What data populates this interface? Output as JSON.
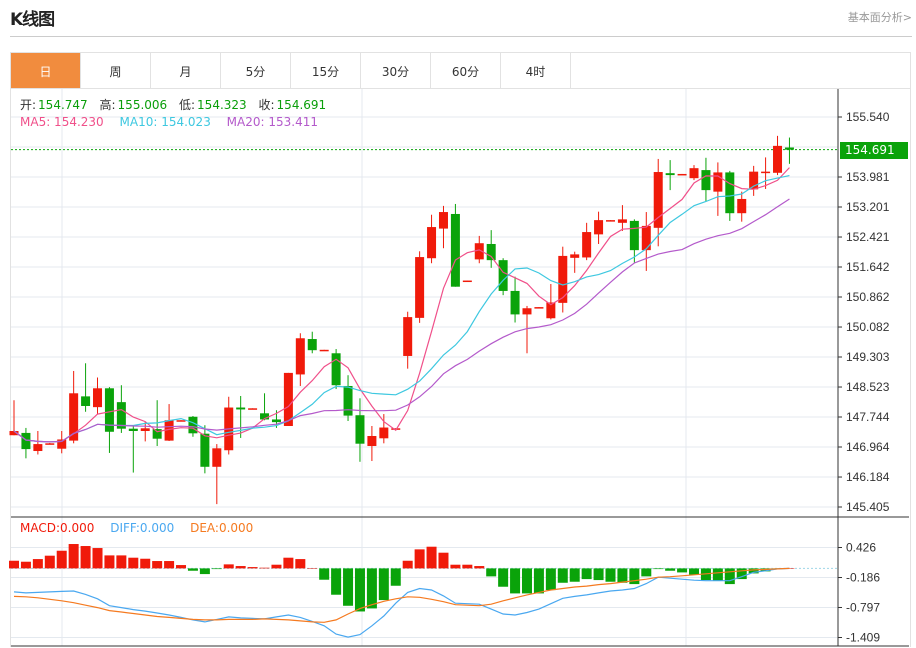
{
  "header": {
    "title": "K线图",
    "link": "基本面分析>"
  },
  "tabs": [
    {
      "label": "日",
      "active": true
    },
    {
      "label": "周"
    },
    {
      "label": "月"
    },
    {
      "label": "5分"
    },
    {
      "label": "15分"
    },
    {
      "label": "30分"
    },
    {
      "label": "60分"
    },
    {
      "label": "4时"
    }
  ],
  "info": {
    "open_label": "开:",
    "open": "154.747",
    "high_label": "高:",
    "high": "155.006",
    "low_label": "低:",
    "low": "154.323",
    "close_label": "收:",
    "close": "154.691",
    "ma5": "MA5: 154.230",
    "ma10": "MA10: 154.023",
    "ma20": "MA20: 153.411"
  },
  "macd_info": {
    "macd": "MACD:0.000",
    "diff": "DIFF:0.000",
    "dea": "DEA:0.000"
  },
  "current_price": "154.691",
  "colors": {
    "up": "#f01a0a",
    "down": "#0aa30a",
    "ma5": "#f0508a",
    "ma10": "#3ec8e0",
    "ma20": "#b45acb",
    "diff": "#4aa8f0",
    "dea": "#f57a20",
    "accent": "#f18c3e"
  },
  "chart_data": {
    "type": "candlestick",
    "price_axis": {
      "ticks": [
        "155.540",
        "153.981",
        "153.201",
        "152.421",
        "151.642",
        "150.862",
        "150.082",
        "149.303",
        "148.523",
        "147.744",
        "146.964",
        "146.184",
        "145.405"
      ],
      "range": [
        145.405,
        155.54
      ],
      "grid": true,
      "side": "right"
    },
    "ohlc_fields": [
      "open",
      "high",
      "low",
      "close"
    ],
    "ohlc": [
      [
        147.27,
        148.18,
        147.27,
        147.38
      ],
      [
        147.33,
        147.46,
        146.67,
        146.91
      ],
      [
        146.86,
        147.38,
        146.77,
        147.04
      ],
      [
        147.05,
        147.07,
        147.04,
        147.06
      ],
      [
        146.92,
        147.38,
        146.8,
        147.16
      ],
      [
        147.13,
        148.94,
        147.06,
        148.36
      ],
      [
        148.28,
        149.14,
        147.88,
        148.03
      ],
      [
        148.0,
        148.77,
        147.82,
        148.49
      ],
      [
        148.49,
        148.52,
        146.81,
        147.36
      ],
      [
        148.13,
        148.57,
        147.33,
        147.44
      ],
      [
        147.44,
        147.53,
        146.3,
        147.38
      ],
      [
        147.38,
        147.62,
        147.11,
        147.45
      ],
      [
        147.43,
        148.18,
        146.99,
        147.18
      ],
      [
        147.13,
        148.08,
        147.12,
        147.66
      ],
      [
        147.65,
        147.66,
        147.65,
        147.66
      ],
      [
        147.75,
        147.77,
        147.23,
        147.32
      ],
      [
        147.31,
        147.53,
        146.28,
        146.45
      ],
      [
        146.45,
        147.04,
        145.48,
        146.93
      ],
      [
        146.88,
        148.27,
        146.77,
        147.99
      ],
      [
        147.99,
        148.29,
        147.2,
        147.94
      ],
      [
        147.96,
        147.97,
        147.96,
        147.97
      ],
      [
        147.84,
        148.36,
        147.66,
        147.68
      ],
      [
        147.68,
        147.92,
        147.46,
        147.61
      ],
      [
        147.51,
        148.89,
        147.51,
        148.89
      ],
      [
        148.85,
        149.92,
        148.55,
        149.79
      ],
      [
        149.77,
        149.96,
        149.4,
        149.48
      ],
      [
        149.48,
        149.49,
        149.48,
        149.49
      ],
      [
        149.4,
        149.51,
        148.47,
        148.57
      ],
      [
        148.55,
        148.83,
        147.64,
        147.78
      ],
      [
        147.79,
        148.23,
        146.58,
        147.05
      ],
      [
        146.99,
        147.51,
        146.6,
        147.25
      ],
      [
        147.19,
        147.82,
        147.06,
        147.47
      ],
      [
        147.44,
        147.45,
        147.44,
        147.45
      ],
      [
        149.33,
        150.48,
        149.0,
        150.34
      ],
      [
        150.32,
        152.05,
        150.19,
        151.9
      ],
      [
        151.87,
        153.0,
        151.74,
        152.68
      ],
      [
        152.64,
        153.23,
        152.13,
        153.07
      ],
      [
        153.02,
        153.28,
        151.13,
        151.13
      ],
      [
        151.28,
        151.29,
        151.28,
        151.29
      ],
      [
        151.84,
        152.45,
        151.74,
        152.26
      ],
      [
        152.24,
        152.6,
        151.62,
        151.82
      ],
      [
        151.82,
        151.87,
        150.91,
        151.02
      ],
      [
        151.02,
        151.39,
        150.2,
        150.41
      ],
      [
        150.41,
        150.63,
        149.4,
        150.57
      ],
      [
        150.59,
        150.6,
        150.59,
        150.6
      ],
      [
        150.31,
        151.2,
        150.28,
        150.72
      ],
      [
        150.71,
        152.17,
        150.46,
        151.93
      ],
      [
        151.88,
        152.04,
        151.49,
        151.97
      ],
      [
        151.89,
        152.79,
        151.82,
        152.55
      ],
      [
        152.49,
        153.08,
        152.24,
        152.86
      ],
      [
        152.85,
        152.86,
        152.85,
        152.86
      ],
      [
        152.79,
        153.25,
        152.58,
        152.88
      ],
      [
        152.84,
        152.88,
        151.76,
        152.08
      ],
      [
        152.08,
        153.07,
        151.54,
        152.71
      ],
      [
        152.66,
        154.45,
        152.18,
        154.11
      ],
      [
        154.08,
        154.42,
        153.64,
        154.03
      ],
      [
        154.05,
        154.06,
        154.05,
        154.06
      ],
      [
        153.95,
        154.29,
        153.9,
        154.21
      ],
      [
        154.16,
        154.48,
        153.34,
        153.64
      ],
      [
        153.6,
        154.36,
        152.97,
        154.1
      ],
      [
        154.1,
        154.14,
        152.84,
        153.04
      ],
      [
        153.04,
        153.6,
        152.82,
        153.41
      ],
      [
        153.66,
        154.27,
        153.49,
        154.12
      ],
      [
        154.11,
        154.49,
        153.67,
        154.12
      ],
      [
        154.09,
        155.05,
        154.03,
        154.79
      ],
      [
        154.747,
        155.006,
        154.323,
        154.691
      ]
    ],
    "moving_averages": [
      {
        "name": "MA5",
        "period": 5
      },
      {
        "name": "MA10",
        "period": 10
      },
      {
        "name": "MA20",
        "period": 20
      }
    ],
    "macd": {
      "ticks": [
        "0.426",
        "-0.186",
        "-0.797",
        "-1.409"
      ],
      "range": [
        -1.409,
        0.426
      ],
      "hist": [
        0.156,
        0.136,
        0.19,
        0.259,
        0.36,
        0.497,
        0.456,
        0.415,
        0.265,
        0.265,
        0.218,
        0.197,
        0.15,
        0.15,
        0.068,
        -0.048,
        -0.116,
        -0.014,
        0.082,
        0.048,
        0.027,
        0.014,
        0.075,
        0.218,
        0.19,
        0,
        -0.231,
        -0.537,
        -0.762,
        -0.878,
        -0.816,
        -0.646,
        -0.354,
        0.156,
        0.388,
        0.442,
        0.32,
        0.075,
        0.075,
        0.048,
        -0.163,
        -0.374,
        -0.51,
        -0.51,
        -0.51,
        -0.442,
        -0.293,
        -0.272,
        -0.218,
        -0.238,
        -0.272,
        -0.293,
        -0.32,
        -0.163,
        -0.014,
        -0.048,
        -0.082,
        -0.129,
        -0.238,
        -0.252,
        -0.32,
        -0.218,
        -0.102,
        -0.061,
        -0.014,
        0
      ],
      "diff": [
        -0.48,
        -0.5,
        -0.49,
        -0.48,
        -0.47,
        -0.46,
        -0.53,
        -0.62,
        -0.76,
        -0.8,
        -0.84,
        -0.87,
        -0.91,
        -0.95,
        -1.0,
        -1.05,
        -1.09,
        -1.04,
        -0.99,
        -1.01,
        -1.02,
        -1.03,
        -0.99,
        -0.95,
        -1.0,
        -1.08,
        -1.17,
        -1.34,
        -1.4,
        -1.35,
        -1.17,
        -0.97,
        -0.71,
        -0.49,
        -0.41,
        -0.44,
        -0.56,
        -0.71,
        -0.72,
        -0.73,
        -0.83,
        -0.93,
        -0.95,
        -0.9,
        -0.83,
        -0.72,
        -0.61,
        -0.57,
        -0.54,
        -0.5,
        -0.46,
        -0.44,
        -0.41,
        -0.31,
        -0.18,
        -0.2,
        -0.22,
        -0.24,
        -0.25,
        -0.25,
        -0.25,
        -0.17,
        -0.08,
        -0.05,
        -0.01,
        0.0
      ],
      "dea": [
        -0.57,
        -0.58,
        -0.6,
        -0.63,
        -0.66,
        -0.7,
        -0.75,
        -0.8,
        -0.86,
        -0.89,
        -0.92,
        -0.95,
        -0.98,
        -1.0,
        -1.02,
        -1.04,
        -1.05,
        -1.05,
        -1.04,
        -1.04,
        -1.04,
        -1.03,
        -1.04,
        -1.05,
        -1.07,
        -1.09,
        -1.1,
        -1.05,
        -0.93,
        -0.82,
        -0.74,
        -0.67,
        -0.62,
        -0.58,
        -0.59,
        -0.63,
        -0.68,
        -0.74,
        -0.75,
        -0.76,
        -0.73,
        -0.66,
        -0.6,
        -0.54,
        -0.49,
        -0.44,
        -0.41,
        -0.38,
        -0.36,
        -0.33,
        -0.31,
        -0.28,
        -0.25,
        -0.22,
        -0.18,
        -0.17,
        -0.15,
        -0.13,
        -0.11,
        -0.09,
        -0.07,
        -0.05,
        -0.03,
        -0.02,
        -0.01,
        0.0
      ]
    }
  }
}
